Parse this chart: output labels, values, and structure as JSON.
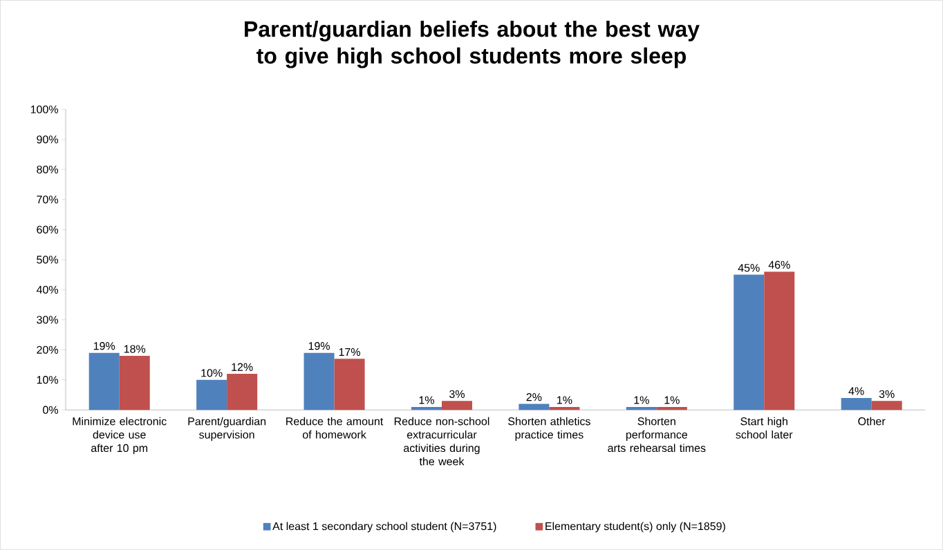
{
  "chart_data": {
    "type": "bar",
    "title": "Parent/guardian beliefs about the best way to give high school students more sleep",
    "categories": [
      "Minimize electronic device use after 10 pm",
      "Parent/guardian supervision",
      "Reduce the amount of homework",
      "Reduce non-school extracurricular activities during the week",
      "Shorten athletics practice times",
      "Shorten performance arts rehearsal times",
      "Start high school later",
      "Other"
    ],
    "series": [
      {
        "name": "At least 1 secondary school student (N=3751)",
        "color": "#4f81bd",
        "values": [
          19,
          10,
          19,
          1,
          2,
          1,
          45,
          4
        ],
        "value_labels": [
          "19%",
          "10%",
          "19%",
          "1%",
          "2%",
          "1%",
          "45%",
          "4%"
        ]
      },
      {
        "name": "Elementary student(s) only (N=1859)",
        "color": "#c0504d",
        "values": [
          18,
          12,
          17,
          3,
          1,
          1,
          46,
          3
        ],
        "value_labels": [
          "18%",
          "12%",
          "17%",
          "3%",
          "1%",
          "1%",
          "46%",
          "3%"
        ]
      }
    ],
    "ylim": [
      0,
      100
    ],
    "yticks": [
      {
        "value": 0,
        "label": "0%"
      },
      {
        "value": 10,
        "label": "10%"
      },
      {
        "value": 20,
        "label": "20%"
      },
      {
        "value": 30,
        "label": "30%"
      },
      {
        "value": 40,
        "label": "40%"
      },
      {
        "value": 50,
        "label": "50%"
      },
      {
        "value": 60,
        "label": "60%"
      },
      {
        "value": 70,
        "label": "70%"
      },
      {
        "value": 80,
        "label": "80%"
      },
      {
        "value": 90,
        "label": "90%"
      },
      {
        "value": 100,
        "label": "100%"
      }
    ],
    "legend": "bottom"
  }
}
